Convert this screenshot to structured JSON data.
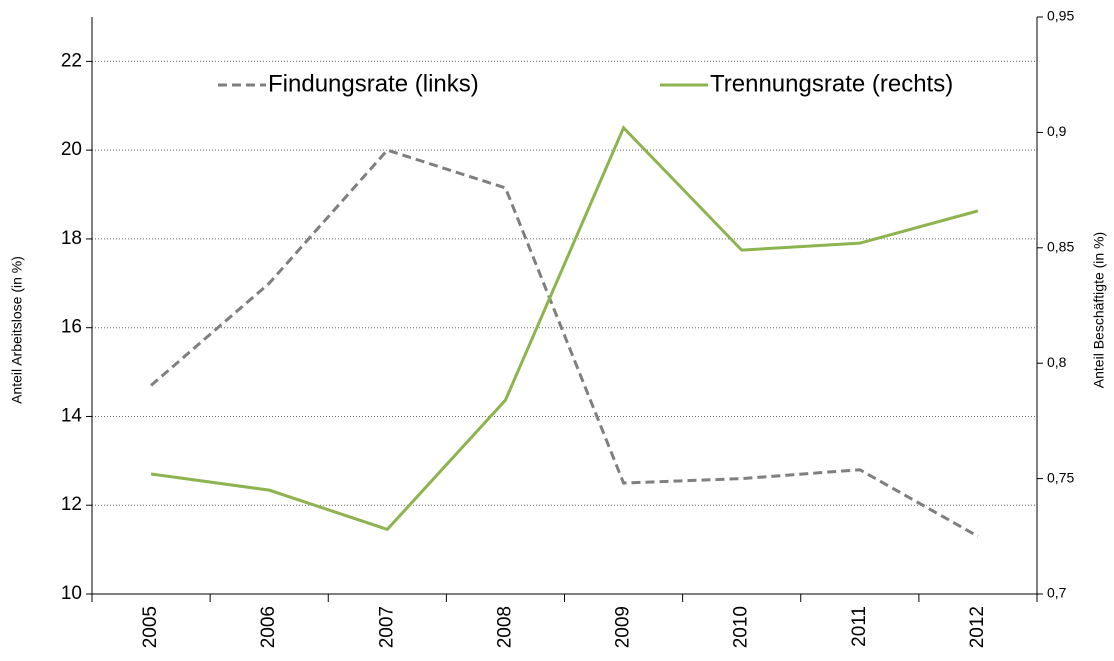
{
  "chart_data": {
    "type": "line",
    "categories": [
      "2005",
      "2006",
      "2007",
      "2008",
      "2009",
      "2010",
      "2011",
      "2012"
    ],
    "series": [
      {
        "name": "Findungsrate (links)",
        "color": "#7f7f7f",
        "dashed": true,
        "values": [
          14.7,
          17.0,
          20.0,
          19.15,
          12.5,
          12.6,
          12.8,
          11.3
        ]
      },
      {
        "name": "Trennungsrate (rechts)",
        "color": "#8db44f",
        "axis": "y2",
        "values": [
          0.752,
          0.745,
          0.728,
          0.784,
          0.902,
          0.849,
          0.852,
          0.866
        ]
      }
    ],
    "ylabel": "Anteil Arbeitslose (in %)",
    "y2label": "Anteil Beschäftigte (in %)",
    "ylim": [
      10,
      23
    ],
    "yticks": [
      10,
      12,
      14,
      16,
      18,
      20,
      22
    ],
    "y2lim": [
      0.7,
      0.95
    ],
    "y2ticks": [
      {
        "value": 0.7,
        "label": "0,7"
      },
      {
        "value": 0.75,
        "label": "0,75"
      },
      {
        "value": 0.8,
        "label": "0,8"
      },
      {
        "value": 0.85,
        "label": "0,85"
      },
      {
        "value": 0.9,
        "label": "0,9"
      },
      {
        "value": 0.95,
        "label": "0,95"
      }
    ],
    "grid": true
  }
}
